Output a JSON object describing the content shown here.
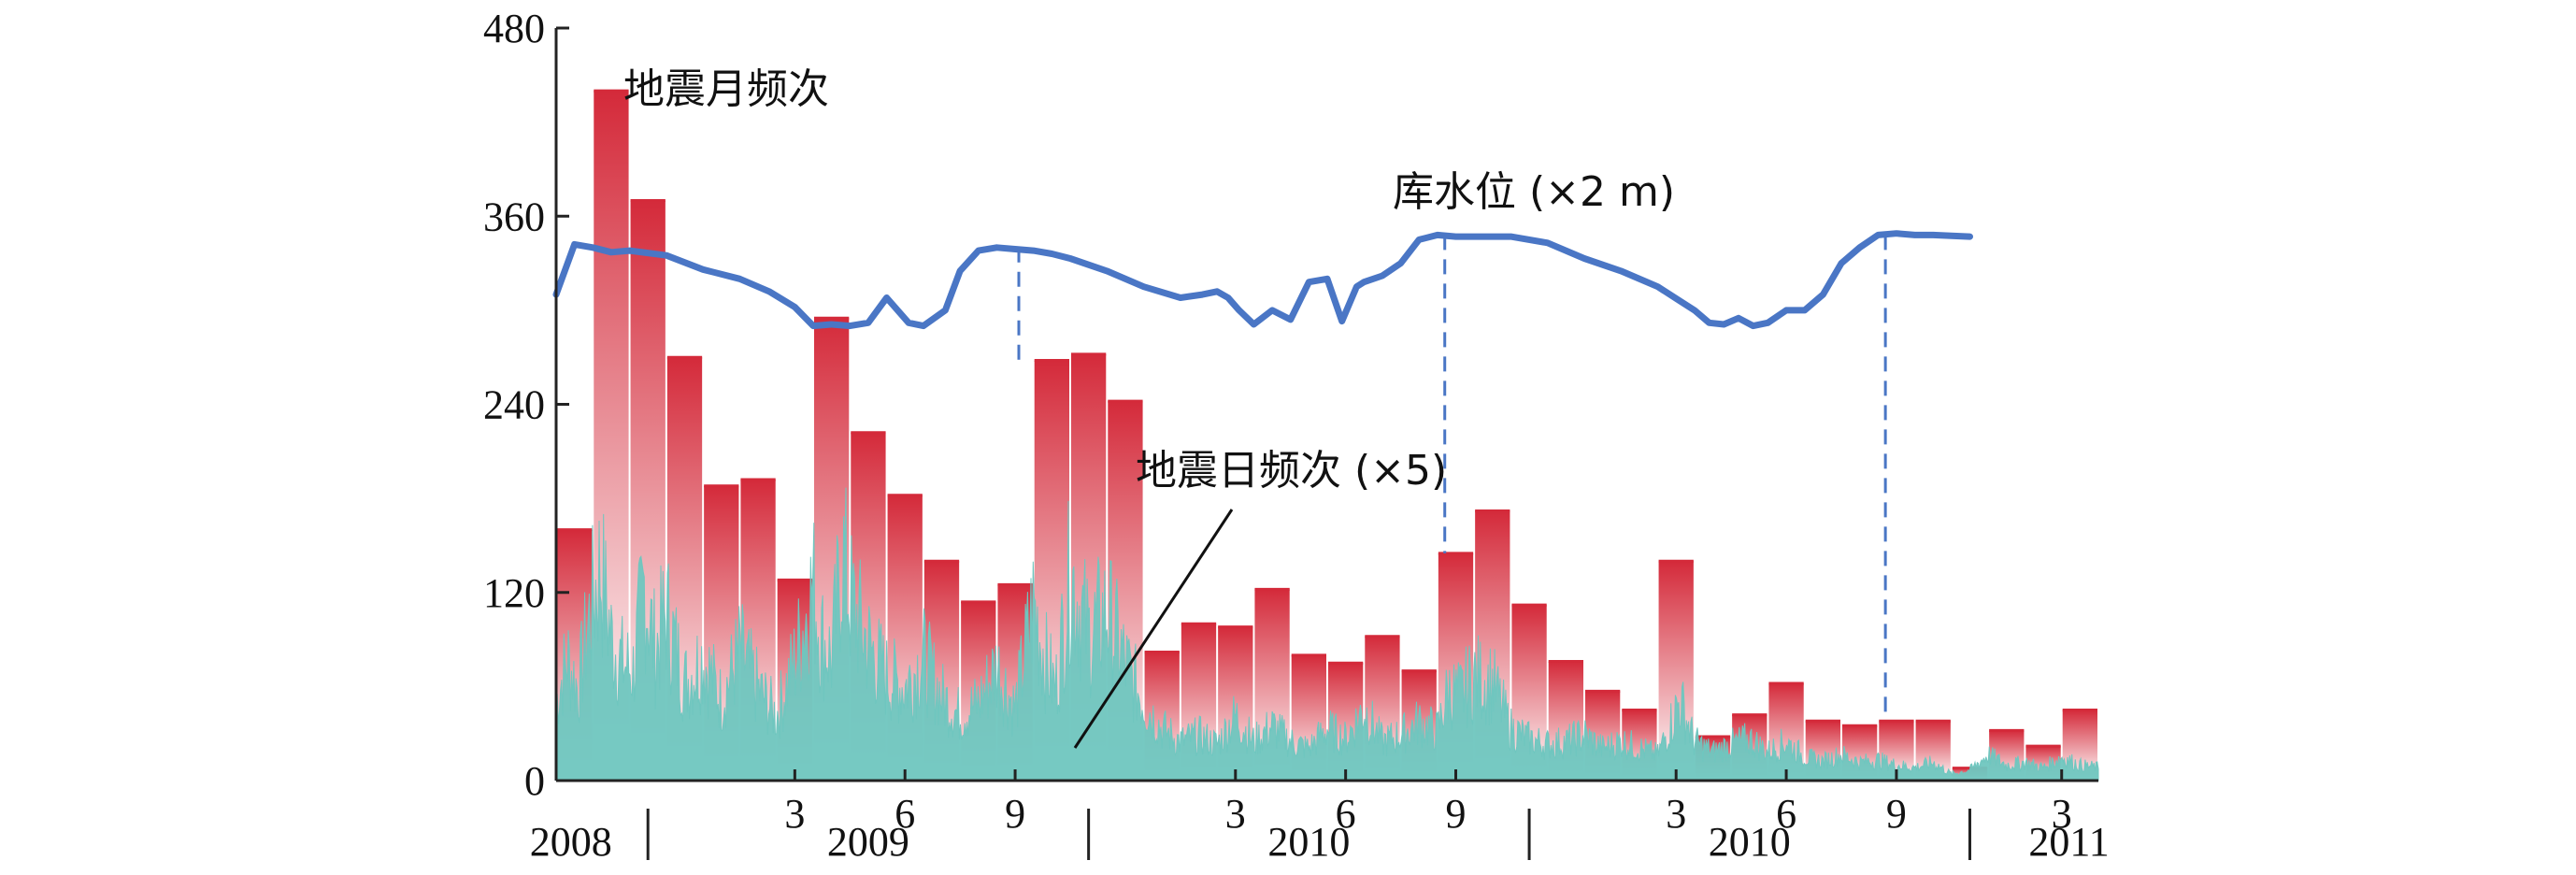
{
  "chart_data": {
    "type": "bar",
    "ylim": [
      0,
      480
    ],
    "yticks": [
      "0",
      "120",
      "240",
      "360",
      "480"
    ],
    "month_ticks": [
      "3",
      "6",
      "9",
      "3",
      "6",
      "9",
      "3",
      "6",
      "9",
      "3"
    ],
    "year_labels": [
      "2008",
      "2009",
      "2010",
      "2010",
      "2011"
    ],
    "annotations": {
      "monthly": "地震月频次",
      "water": "库水位 (×2 m)",
      "daily": "地震日频次 (×5)"
    },
    "colors": {
      "bar_top": "#d42a3a",
      "bar_bottom": "#ffffff",
      "water_line": "#4a76c5",
      "daily_fill": "#6fc6bf",
      "axis": "#222222"
    },
    "series": [
      {
        "key": "monthly",
        "values": [
          160,
          440,
          370,
          270,
          188,
          192,
          128,
          295,
          222,
          182,
          140,
          114,
          125,
          268,
          272,
          242,
          82,
          100,
          98,
          122,
          80,
          75,
          92,
          70,
          145,
          172,
          112,
          76,
          57,
          45,
          140,
          28,
          42,
          62,
          38,
          35,
          38,
          38,
          8,
          32,
          22,
          45
        ]
      },
      {
        "key": "water",
        "x": [
          0,
          0.5,
          1,
          1.5,
          2,
          3,
          4,
          5,
          5.8,
          6.5,
          7,
          7.5,
          8,
          8.5,
          9,
          9.6,
          10,
          10.6,
          11,
          11.5,
          12,
          12.5,
          13,
          13.5,
          14,
          15,
          16,
          17,
          17.6,
          18,
          18.3,
          18.6,
          19,
          19.5,
          20,
          20.5,
          21,
          21.4,
          21.8,
          22,
          22.5,
          23,
          23.5,
          24,
          24.5,
          25,
          26,
          27,
          28,
          29,
          30,
          30.6,
          31,
          31.4,
          31.8,
          32.2,
          32.6,
          33,
          33.5,
          34,
          34.5,
          35,
          35.5,
          36,
          36.5,
          37,
          37.5,
          38.5
        ],
        "values": [
          310,
          342,
          340,
          337,
          338,
          335,
          326,
          320,
          312,
          302,
          290,
          291,
          290,
          292,
          308,
          292,
          290,
          300,
          325,
          338,
          340,
          339,
          338,
          336,
          333,
          325,
          315,
          308,
          310,
          312,
          308,
          300,
          291,
          300,
          294,
          318,
          320,
          293,
          315,
          318,
          322,
          330,
          345,
          348,
          347,
          347,
          347,
          343,
          333,
          325,
          315,
          306,
          300,
          292,
          291,
          295,
          290,
          292,
          300,
          300,
          310,
          330,
          340,
          348,
          349,
          348,
          348,
          347
        ]
      },
      {
        "key": "daily",
        "x": [
          0,
          0.3,
          0.6,
          0.9,
          1.2,
          1.5,
          1.8,
          2.1,
          2.4,
          2.7,
          3,
          3.5,
          4,
          4.5,
          5,
          5.5,
          6,
          6.5,
          7,
          7.2,
          7.5,
          7.8,
          8,
          8.5,
          9,
          9.5,
          10,
          10.5,
          11,
          11.5,
          12,
          12.5,
          13,
          13.3,
          13.6,
          14,
          14.5,
          15,
          15.5,
          16,
          16.5,
          17,
          17.5,
          18,
          18.5,
          19,
          19.5,
          20,
          20.5,
          21,
          21.5,
          22,
          22.5,
          23,
          23.5,
          24,
          24.3,
          24.6,
          25,
          25.5,
          26,
          26.5,
          27,
          27.5,
          28,
          28.5,
          29,
          29.5,
          30,
          30.3,
          30.6,
          31,
          31.5,
          32,
          32.5,
          33,
          33.5,
          34,
          34.5,
          35,
          35.5,
          36,
          36.5,
          37,
          37.5,
          38,
          38.5,
          39,
          39.5,
          40,
          40.5,
          41,
          41.5,
          42
        ],
        "values": [
          60,
          95,
          70,
          125,
          165,
          110,
          90,
          85,
          150,
          100,
          130,
          75,
          95,
          62,
          100,
          70,
          50,
          92,
          150,
          112,
          95,
          175,
          140,
          105,
          80,
          72,
          95,
          65,
          50,
          60,
          88,
          55,
          135,
          95,
          70,
          160,
          112,
          130,
          90,
          60,
          40,
          30,
          35,
          28,
          50,
          30,
          42,
          30,
          25,
          40,
          32,
          55,
          30,
          35,
          45,
          38,
          70,
          65,
          80,
          75,
          40,
          32,
          28,
          30,
          35,
          25,
          30,
          25,
          20,
          40,
          62,
          30,
          22,
          28,
          32,
          22,
          30,
          18,
          15,
          20,
          14,
          16,
          12,
          10,
          14,
          5,
          8,
          20,
          12,
          14,
          10,
          18,
          12,
          10
        ]
      }
    ]
  }
}
